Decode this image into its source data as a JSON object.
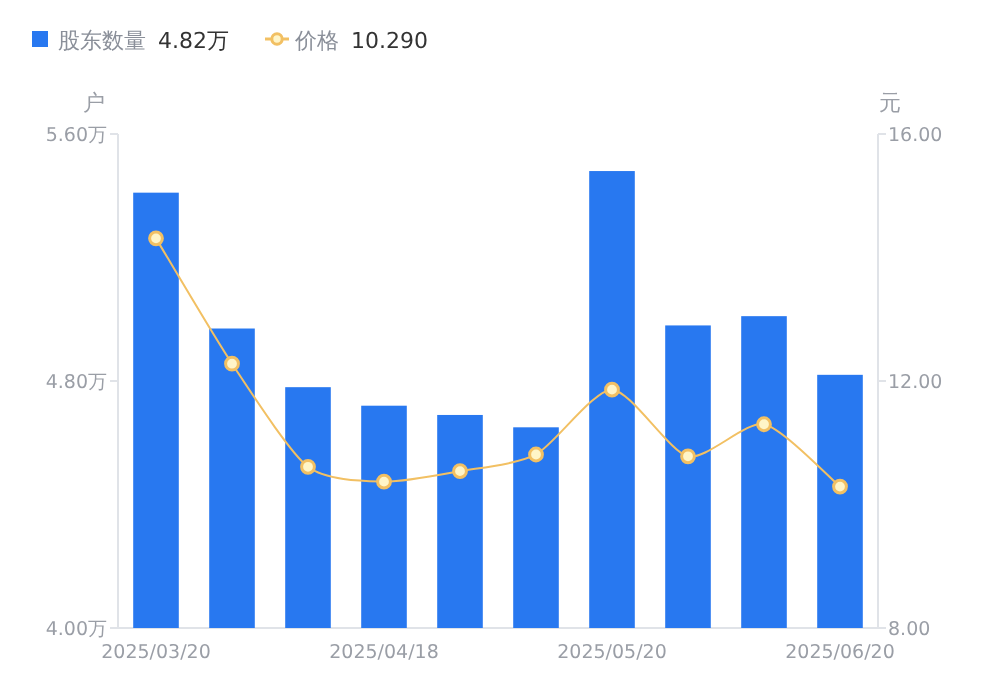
{
  "chart_data": {
    "type": "bar",
    "legend": "top left",
    "ylabel": "户",
    "y2label": "元",
    "categories": [
      "2025/03/20",
      null,
      null,
      "2025/04/18",
      null,
      null,
      "2025/05/20",
      null,
      null,
      "2025/06/20"
    ],
    "ylim": [
      4.0,
      5.6
    ],
    "yticks": [
      {
        "value": 4.0,
        "label": "4.00万"
      },
      {
        "value": 4.8,
        "label": "4.80万"
      },
      {
        "value": 5.6,
        "label": "5.60万"
      }
    ],
    "y2lim": [
      8,
      16
    ],
    "y2ticks": [
      {
        "value": 8,
        "label": "8.00"
      },
      {
        "value": 12,
        "label": "12.00"
      },
      {
        "value": 16,
        "label": "16.00"
      }
    ],
    "series": [
      {
        "name": "股东数量",
        "color": "#2878f0",
        "values": [
          5.41,
          4.97,
          4.78,
          4.72,
          4.69,
          4.65,
          5.48,
          4.98,
          5.01,
          4.82
        ]
      },
      {
        "name": "价格",
        "type": "line",
        "axis": "y2",
        "color": "#f2c063",
        "marker": "circle",
        "values": [
          14.31,
          12.28,
          10.61,
          10.37,
          10.54,
          10.81,
          11.86,
          10.78,
          11.3,
          10.29
        ]
      }
    ],
    "annotations": [
      "4.82万",
      "10.290"
    ]
  }
}
